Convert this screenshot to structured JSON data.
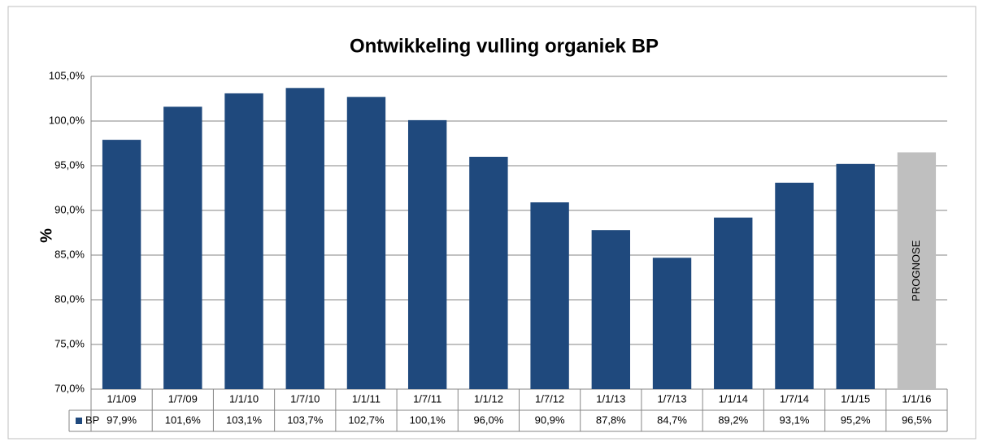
{
  "chart_data": {
    "type": "bar",
    "title": "Ontwikkeling vulling organiek BP",
    "y_label": "%",
    "categories": [
      "1/1/09",
      "1/7/09",
      "1/1/10",
      "1/7/10",
      "1/1/11",
      "1/7/11",
      "1/1/12",
      "1/7/12",
      "1/1/13",
      "1/7/13",
      "1/1/14",
      "1/7/14",
      "1/1/15",
      "1/1/16"
    ],
    "series": [
      {
        "name": "BP",
        "color": "#1f497d",
        "colors": [
          "#1f497d",
          "#1f497d",
          "#1f497d",
          "#1f497d",
          "#1f497d",
          "#1f497d",
          "#1f497d",
          "#1f497d",
          "#1f497d",
          "#1f497d",
          "#1f497d",
          "#1f497d",
          "#1f497d",
          "#bfbfbf"
        ],
        "values": [
          97.9,
          101.6,
          103.1,
          103.7,
          102.7,
          100.1,
          96.0,
          90.9,
          87.8,
          84.7,
          89.2,
          93.1,
          95.2,
          96.5
        ],
        "value_labels": [
          "97,9%",
          "101,6%",
          "103,1%",
          "103,7%",
          "102,7%",
          "100,1%",
          "96,0%",
          "90,9%",
          "87,8%",
          "84,7%",
          "89,2%",
          "93,1%",
          "95,2%",
          "96,5%"
        ]
      }
    ],
    "annotations": [
      {
        "text": "PROGNOSE",
        "category": "1/1/16"
      }
    ],
    "ylim": [
      70,
      105
    ],
    "yticks": [
      {
        "value": 70,
        "label": "70,0%"
      },
      {
        "value": 75,
        "label": "75,0%"
      },
      {
        "value": 80,
        "label": "80,0%"
      },
      {
        "value": 85,
        "label": "85,0%"
      },
      {
        "value": 90,
        "label": "90,0%"
      },
      {
        "value": 95,
        "label": "95,0%"
      },
      {
        "value": 100,
        "label": "100,0%"
      },
      {
        "value": 105,
        "label": "105,0%"
      }
    ],
    "grid": true
  }
}
